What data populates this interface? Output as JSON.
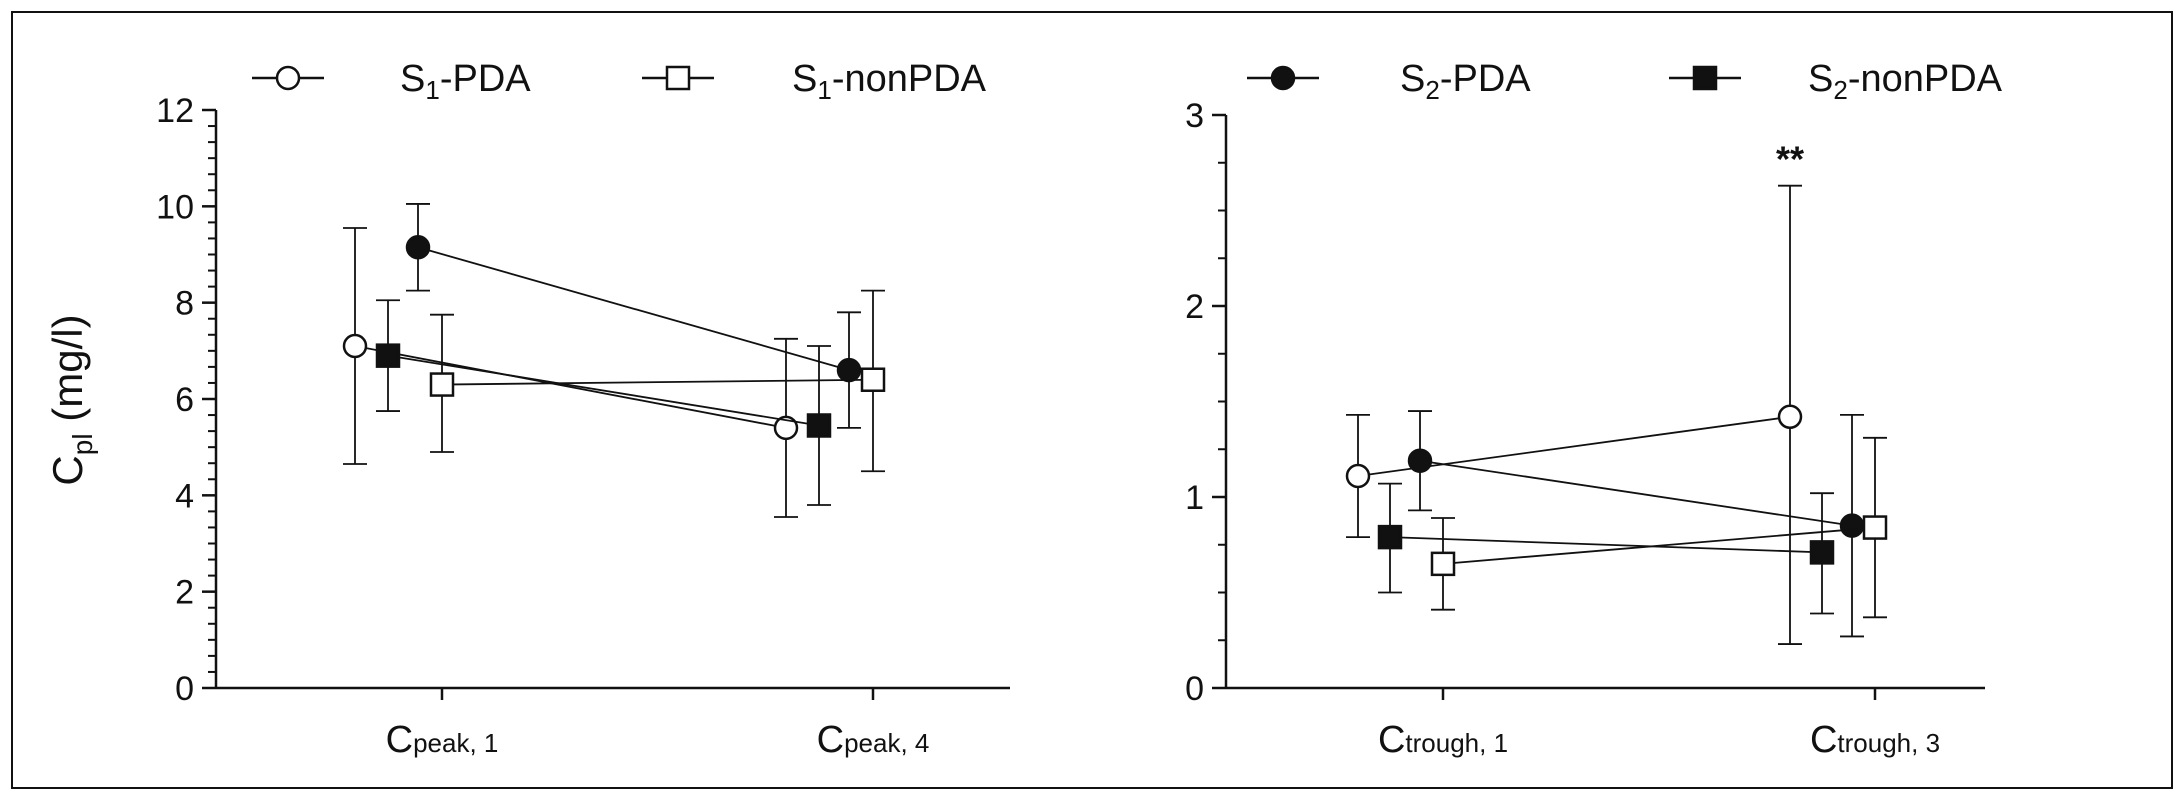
{
  "chart_data": [
    {
      "type": "line",
      "panel": "left",
      "ylabel": "Cpl (mg/l)",
      "ylabel_parts": {
        "main": "C",
        "sub": "pl",
        "rest": " (mg/l)"
      },
      "ylim": [
        0,
        12
      ],
      "yticks": [
        "0",
        "2",
        "4",
        "6",
        "8",
        "10",
        "12"
      ],
      "categories": [
        {
          "main": "C",
          "sub": "peak, 1"
        },
        {
          "main": "C",
          "sub": "peak, 4"
        }
      ],
      "legend": {
        "placement": "top",
        "entries": [
          {
            "main": "S",
            "sub": "1",
            "rest": "-PDA",
            "series": "S1-PDA"
          },
          {
            "main": "S",
            "sub": "1",
            "rest": "-nonPDA",
            "series": "S1-nonPDA"
          }
        ]
      },
      "series": [
        {
          "name": "S1-PDA",
          "marker": "circle-open",
          "values": [
            7.1,
            5.4
          ],
          "err_low": [
            4.65,
            3.55
          ],
          "err_high": [
            9.55,
            7.25
          ]
        },
        {
          "name": "S2-PDA",
          "marker": "circle-filled",
          "values": [
            9.15,
            6.6
          ],
          "err_low": [
            8.25,
            5.4
          ],
          "err_high": [
            10.05,
            7.8
          ]
        },
        {
          "name": "S2-nonPDA",
          "marker": "square-filled",
          "values": [
            6.9,
            5.45
          ],
          "err_low": [
            5.75,
            3.8
          ],
          "err_high": [
            8.05,
            7.1
          ]
        },
        {
          "name": "S1-nonPDA",
          "marker": "square-open",
          "values": [
            6.3,
            6.4
          ],
          "err_low": [
            4.9,
            4.5
          ],
          "err_high": [
            7.75,
            8.25
          ]
        }
      ]
    },
    {
      "type": "line",
      "panel": "right",
      "ylim": [
        0,
        3
      ],
      "yticks": [
        "0",
        "1",
        "2",
        "3"
      ],
      "categories": [
        {
          "main": "C",
          "sub": "trough, 1"
        },
        {
          "main": "C",
          "sub": "trough, 3"
        }
      ],
      "legend": {
        "placement": "top",
        "entries": [
          {
            "main": "S",
            "sub": "2",
            "rest": "-PDA",
            "series": "S2-PDA"
          },
          {
            "main": "S",
            "sub": "2",
            "rest": "-nonPDA",
            "series": "S2-nonPDA"
          }
        ]
      },
      "annotations": [
        {
          "text": "**",
          "series": "S1-PDA",
          "category_index": 1
        }
      ],
      "series": [
        {
          "name": "S1-PDA",
          "marker": "circle-open",
          "values": [
            1.11,
            1.42
          ],
          "err_low": [
            0.79,
            0.23
          ],
          "err_high": [
            1.43,
            2.63
          ]
        },
        {
          "name": "S2-PDA",
          "marker": "circle-filled",
          "values": [
            1.19,
            0.85
          ],
          "err_low": [
            0.93,
            0.27
          ],
          "err_high": [
            1.45,
            1.43
          ]
        },
        {
          "name": "S2-nonPDA",
          "marker": "square-filled",
          "values": [
            0.79,
            0.71
          ],
          "err_low": [
            0.5,
            0.39
          ],
          "err_high": [
            1.07,
            1.02
          ]
        },
        {
          "name": "S1-nonPDA",
          "marker": "square-open",
          "values": [
            0.65,
            0.84
          ],
          "err_low": [
            0.41,
            0.37
          ],
          "err_high": [
            0.89,
            1.31
          ]
        }
      ]
    }
  ]
}
